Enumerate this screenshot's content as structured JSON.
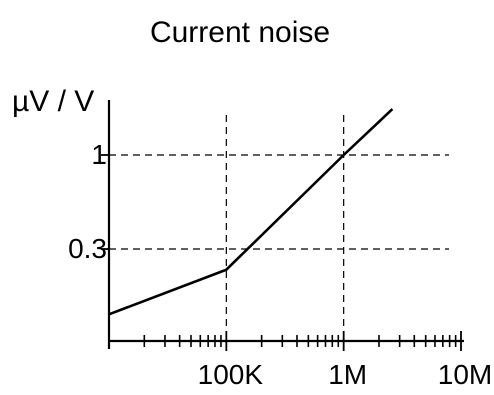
{
  "chart_data": {
    "type": "line",
    "title": "Current noise",
    "ylabel": "µV / V",
    "xlabel": "",
    "xscale": "log",
    "yscale": "log",
    "xlim": [
      10000,
      10000000
    ],
    "ylim": [
      0.1,
      2.0
    ],
    "grid": "dashed reference lines at labeled ticks",
    "x_ticks": [
      {
        "value": 100000,
        "label": "100K"
      },
      {
        "value": 1000000,
        "label": "1M"
      },
      {
        "value": 10000000,
        "label": "10M"
      }
    ],
    "y_ticks": [
      {
        "value": 0.3,
        "label": "0.3"
      },
      {
        "value": 1,
        "label": "1"
      }
    ],
    "series": [
      {
        "points": [
          {
            "x": 10000,
            "y": 0.13
          },
          {
            "x": 100000,
            "y": 0.23
          },
          {
            "x": 1000000,
            "y": 1.0
          },
          {
            "x": 2600000,
            "y": 1.8
          }
        ]
      }
    ]
  }
}
